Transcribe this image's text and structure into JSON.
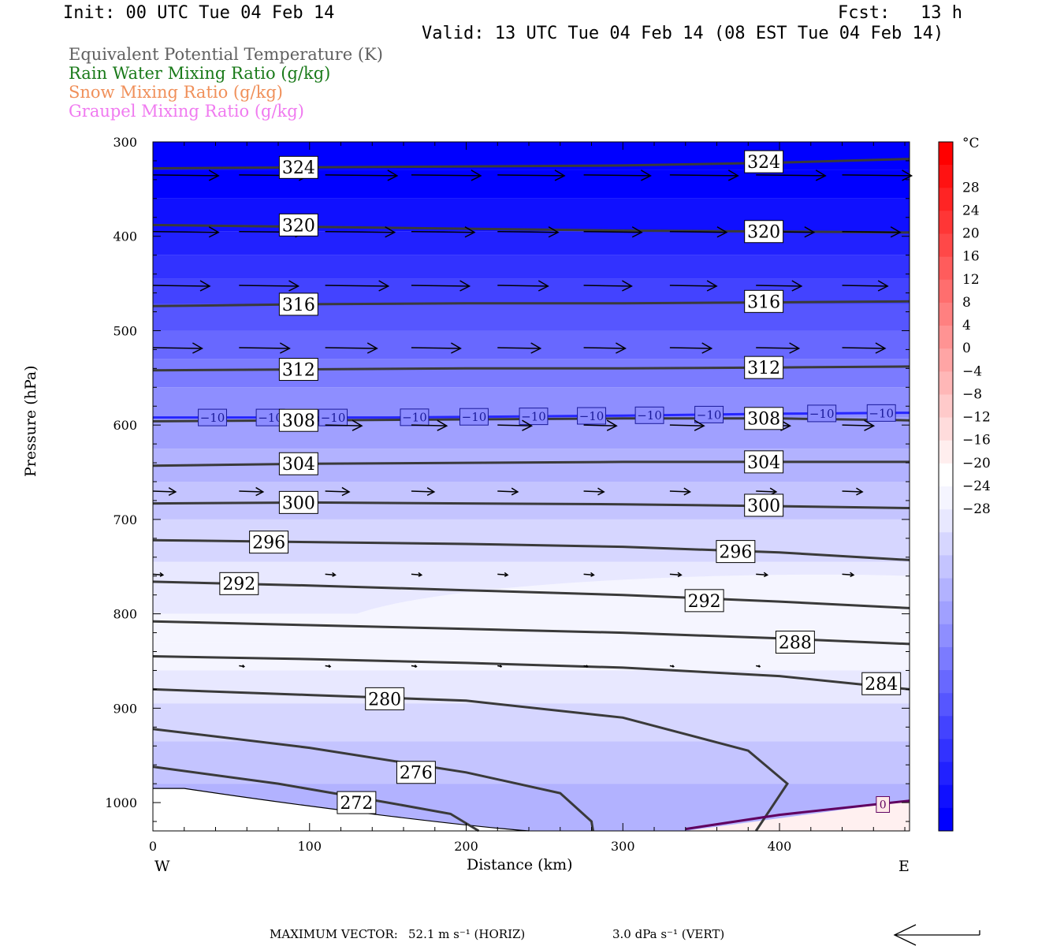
{
  "header": {
    "init": "Init: 00 UTC Tue 04 Feb 14",
    "fcst_label": "Fcst:",
    "fcst_value": "13 h",
    "valid": "Valid: 13 UTC Tue 04 Feb 14 (08 EST Tue 04 Feb 14)"
  },
  "legend": [
    {
      "label": "Equivalent Potential Temperature (K)",
      "color": "#606060"
    },
    {
      "label": "Rain Water Mixing Ratio (g/kg)",
      "color": "#1a7a1a"
    },
    {
      "label": "Snow Mixing Ratio (g/kg)",
      "color": "#f0905a"
    },
    {
      "label": "Graupel Mixing Ratio (g/kg)",
      "color": "#f07af0"
    }
  ],
  "footer": {
    "max_vector": "MAXIMUM VECTOR:",
    "horiz": "52.1 m s⁻¹ (HORIZ)",
    "vert": "3.0 dPa s⁻¹ (VERT)"
  },
  "chart_data": {
    "type": "contour",
    "xlabel": "Distance (km)",
    "ylabel": "Pressure (hPa)",
    "xlim": [
      0,
      483
    ],
    "ylim": [
      1030,
      300
    ],
    "x_ticks": [
      0,
      100,
      200,
      300,
      400
    ],
    "y_ticks": [
      300,
      400,
      500,
      600,
      700,
      800,
      900,
      1000
    ],
    "x_end_labels": {
      "left": "W",
      "right": "E"
    },
    "colorbar": {
      "unit": "°C",
      "tick_labels": [
        "28",
        "24",
        "20",
        "16",
        "12",
        "8",
        "4",
        "0",
        "−4",
        "−8",
        "−12",
        "−16",
        "−20",
        "−24",
        "−28"
      ],
      "colors": [
        "#0000ff",
        "#1010ff",
        "#2121ff",
        "#3232ff",
        "#4343ff",
        "#5656ff",
        "#6868ff",
        "#7b7bff",
        "#8e8eff",
        "#a0a0ff",
        "#b2b2ff",
        "#c4c4ff",
        "#d6d6ff",
        "#e8e8ff",
        "#f5f5ff",
        "#ffffff",
        "#ffeeee",
        "#ffdcdc",
        "#ffcaca",
        "#ffb7b7",
        "#ffa5a5",
        "#ff9393",
        "#ff8080",
        "#ff6e6e",
        "#ff5c5c",
        "#ff4848",
        "#ff3636",
        "#ff2424",
        "#ff1212",
        "#ff0000"
      ]
    },
    "theta_e_contours": [
      {
        "value": 324,
        "label": "324",
        "points": [
          [
            0,
            328
          ],
          [
            100,
            327
          ],
          [
            200,
            326
          ],
          [
            300,
            325
          ],
          [
            400,
            322
          ],
          [
            483,
            318
          ]
        ],
        "label_at": [
          [
            93,
            327
          ],
          [
            390,
            321
          ]
        ]
      },
      {
        "value": 320,
        "label": "320",
        "points": [
          [
            0,
            388
          ],
          [
            100,
            390
          ],
          [
            200,
            392
          ],
          [
            300,
            394
          ],
          [
            400,
            395
          ],
          [
            483,
            396
          ]
        ],
        "label_at": [
          [
            93,
            388
          ],
          [
            390,
            395
          ]
        ]
      },
      {
        "value": 316,
        "label": "316",
        "points": [
          [
            0,
            474
          ],
          [
            100,
            472
          ],
          [
            200,
            471
          ],
          [
            300,
            471
          ],
          [
            400,
            470
          ],
          [
            483,
            469
          ]
        ],
        "label_at": [
          [
            93,
            472
          ],
          [
            390,
            469
          ]
        ]
      },
      {
        "value": 312,
        "label": "312",
        "points": [
          [
            0,
            542
          ],
          [
            100,
            541
          ],
          [
            200,
            540
          ],
          [
            300,
            540
          ],
          [
            400,
            539
          ],
          [
            483,
            538
          ]
        ],
        "label_at": [
          [
            93,
            541
          ],
          [
            390,
            539
          ]
        ]
      },
      {
        "value": 308,
        "label": "308",
        "points": [
          [
            0,
            596
          ],
          [
            100,
            595
          ],
          [
            200,
            594
          ],
          [
            300,
            593
          ],
          [
            400,
            593
          ],
          [
            483,
            595
          ]
        ],
        "label_at": [
          [
            93,
            595
          ],
          [
            390,
            593
          ]
        ]
      },
      {
        "value": 304,
        "label": "304",
        "points": [
          [
            0,
            643
          ],
          [
            100,
            641
          ],
          [
            200,
            640
          ],
          [
            300,
            639
          ],
          [
            400,
            639
          ],
          [
            483,
            639
          ]
        ],
        "label_at": [
          [
            93,
            641
          ],
          [
            390,
            639
          ]
        ]
      },
      {
        "value": 300,
        "label": "300",
        "points": [
          [
            0,
            683
          ],
          [
            100,
            682
          ],
          [
            200,
            683
          ],
          [
            300,
            684
          ],
          [
            400,
            686
          ],
          [
            483,
            688
          ]
        ],
        "label_at": [
          [
            93,
            682
          ],
          [
            390,
            685
          ]
        ]
      },
      {
        "value": 296,
        "label": "296",
        "points": [
          [
            0,
            722
          ],
          [
            100,
            724
          ],
          [
            200,
            726
          ],
          [
            300,
            729
          ],
          [
            400,
            735
          ],
          [
            483,
            743
          ]
        ],
        "label_at": [
          [
            74,
            724
          ],
          [
            372,
            734
          ]
        ]
      },
      {
        "value": 292,
        "label": "292",
        "points": [
          [
            0,
            766
          ],
          [
            100,
            770
          ],
          [
            200,
            775
          ],
          [
            300,
            780
          ],
          [
            400,
            787
          ],
          [
            483,
            794
          ]
        ],
        "label_at": [
          [
            55,
            768
          ],
          [
            352,
            786
          ]
        ]
      },
      {
        "value": 288,
        "label": "288",
        "points": [
          [
            0,
            808
          ],
          [
            100,
            812
          ],
          [
            200,
            816
          ],
          [
            300,
            820
          ],
          [
            400,
            826
          ],
          [
            483,
            832
          ]
        ],
        "label_at": [
          [
            410,
            830
          ]
        ]
      },
      {
        "value": 284,
        "label": "284",
        "points": [
          [
            0,
            845
          ],
          [
            100,
            848
          ],
          [
            200,
            852
          ],
          [
            300,
            857
          ],
          [
            400,
            866
          ],
          [
            483,
            880
          ]
        ],
        "label_at": [
          [
            465,
            874
          ]
        ]
      },
      {
        "value": 280,
        "label": "280",
        "points": [
          [
            0,
            880
          ],
          [
            100,
            886
          ],
          [
            200,
            892
          ],
          [
            300,
            910
          ],
          [
            380,
            945
          ],
          [
            405,
            980
          ],
          [
            385,
            1030
          ]
        ],
        "label_at": [
          [
            148,
            890
          ]
        ]
      },
      {
        "value": 276,
        "label": "276",
        "points": [
          [
            0,
            922
          ],
          [
            100,
            942
          ],
          [
            200,
            968
          ],
          [
            260,
            990
          ],
          [
            280,
            1020
          ],
          [
            281,
            1030
          ]
        ],
        "label_at": [
          [
            168,
            968
          ]
        ]
      },
      {
        "value": 272,
        "label": "272",
        "points": [
          [
            0,
            962
          ],
          [
            80,
            980
          ],
          [
            150,
            1000
          ],
          [
            190,
            1012
          ],
          [
            208,
            1030
          ]
        ],
        "label_at": [
          [
            130,
            1000
          ]
        ]
      }
    ],
    "isotherm": {
      "value": -10,
      "label": "−10",
      "color": "#2626ff",
      "points": [
        [
          0,
          592
        ],
        [
          150,
          592
        ],
        [
          300,
          590
        ],
        [
          400,
          588
        ],
        [
          483,
          587
        ]
      ],
      "label_x": [
        38,
        75,
        115,
        167,
        205,
        243,
        280,
        317,
        355,
        427,
        465
      ]
    },
    "freezing_line": {
      "value": 0,
      "label": "0",
      "color": "#600060",
      "points": [
        [
          340,
          1028
        ],
        [
          400,
          1013
        ],
        [
          483,
          998
        ]
      ],
      "label_at": [
        [
          466,
          1002
        ]
      ]
    },
    "wind_vectors": [
      {
        "p": 335,
        "x": [
          0,
          55,
          110,
          165,
          220,
          275,
          330,
          385,
          440
        ],
        "len": [
          52,
          55,
          57,
          55,
          53,
          53,
          54,
          55,
          55
        ]
      },
      {
        "p": 395,
        "x": [
          0,
          55,
          110,
          165,
          220,
          275,
          330,
          385,
          440
        ],
        "len": [
          52,
          52,
          55,
          50,
          48,
          46,
          45,
          46,
          46
        ]
      },
      {
        "p": 452,
        "x": [
          0,
          55,
          110,
          165,
          220,
          275,
          330,
          385,
          440
        ],
        "len": [
          45,
          47,
          50,
          46,
          40,
          38,
          37,
          36,
          36
        ]
      },
      {
        "p": 518,
        "x": [
          0,
          55,
          110,
          165,
          220,
          275,
          330,
          385,
          440
        ],
        "len": [
          39,
          40,
          41,
          39,
          34,
          33,
          33,
          34,
          34
        ]
      },
      {
        "p": 600,
        "x": [
          110,
          165,
          220,
          275,
          330,
          385,
          440
        ],
        "len": [
          29,
          28,
          27,
          26,
          27,
          27,
          25
        ]
      },
      {
        "p": 670,
        "x": [
          0,
          55,
          110,
          165,
          220,
          275,
          330,
          385,
          440
        ],
        "len": [
          18,
          19,
          19,
          18,
          16,
          16,
          16,
          16,
          16
        ]
      },
      {
        "p": 758,
        "x": [
          0,
          110,
          165,
          220,
          275,
          330,
          385,
          440
        ],
        "len": [
          8,
          8,
          8,
          8,
          8,
          9,
          9,
          9
        ]
      },
      {
        "p": 855,
        "x": [
          55,
          110,
          165,
          220,
          275,
          330,
          385
        ],
        "len": [
          4,
          4,
          4,
          3,
          3,
          3,
          3
        ]
      }
    ],
    "temperature_field_note": "Shaded temperature (°C): approx −30 at 300 hPa increasing to about −2 near 800 hPa, cooler layer −8 to −14 in lowest 900–1000 hPa west, 0 to +2 near surface east"
  }
}
